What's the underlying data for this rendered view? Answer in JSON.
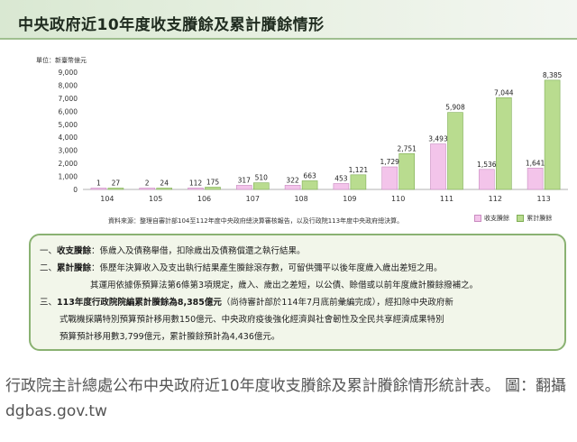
{
  "banner": {
    "title": "中央政府近10年度收支賸餘及累計賸餘情形"
  },
  "chart_data": {
    "type": "bar",
    "unit_label": "單位：新臺幣億元",
    "categories": [
      "104",
      "105",
      "106",
      "107",
      "108",
      "109",
      "110",
      "111",
      "112",
      "113"
    ],
    "series": [
      {
        "name": "收支賸餘",
        "values": [
          1,
          2,
          112,
          317,
          322,
          453,
          1729,
          3493,
          1536,
          1641
        ],
        "labels": [
          "1",
          "2",
          "112",
          "317",
          "322",
          "453",
          "1,729",
          "3,493",
          "1,536",
          "1,641"
        ]
      },
      {
        "name": "累計賸餘",
        "values": [
          27,
          24,
          175,
          510,
          663,
          1121,
          2751,
          5908,
          7044,
          8385
        ],
        "labels": [
          "27",
          "24",
          "175",
          "510",
          "663",
          "1,121",
          "2,751",
          "5,908",
          "7,044",
          "8,385"
        ]
      }
    ],
    "ylim": [
      0,
      9000
    ],
    "yticks": [
      "0",
      "1,000",
      "2,000",
      "3,000",
      "4,000",
      "5,000",
      "6,000",
      "7,000",
      "8,000",
      "9,000"
    ],
    "colors": {
      "surplus": "#f3c4ea",
      "surplus_edge": "#c98cc0",
      "cumulative": "#b9dc8f",
      "cumulative_edge": "#7fae55"
    },
    "source": "資料來源：整理自審計部104至112年度中央政府總決算審核報告，以及行政院113年度中央政府總決算。",
    "legend_placement": "bottom-right"
  },
  "notes": [
    {
      "marker": "一、",
      "term": "收支賸餘",
      "text": "：係歲入及債務舉借，扣除歲出及債務償還之執行結果。"
    },
    {
      "marker": "二、",
      "term": "累計賸餘",
      "text": "：係歷年決算收入及支出執行結果產生賸餘滾存數，可留供彌平以後年度歲入歲出差短之用。"
    },
    {
      "marker": "",
      "term": "",
      "text": "其運用依據係預算法第6條第3項規定，歲入、歲出之差短，以公債、賒借或以前年度歲計賸餘撥補之。"
    },
    {
      "marker": "三、",
      "term": "113年度行政院院編累計賸餘為8,385億元",
      "text": "（尚待審計部於114年7月底前彙編完成），經扣除中央政府新"
    },
    {
      "marker": "",
      "term": "",
      "text": "式戰機採購特別預算預計移用數150億元、中央政府疫後強化經濟與社會韌性及全民共享經濟成果特別"
    },
    {
      "marker": "",
      "term": "",
      "text": "預算預計移用數3,799億元，累計賸餘預計為4,436億元。"
    }
  ],
  "caption": "行政院主計總處公布中央政府近10年度收支賸餘及累計賸餘情形統計表。 圖：翻攝dgbas.gov.tw"
}
